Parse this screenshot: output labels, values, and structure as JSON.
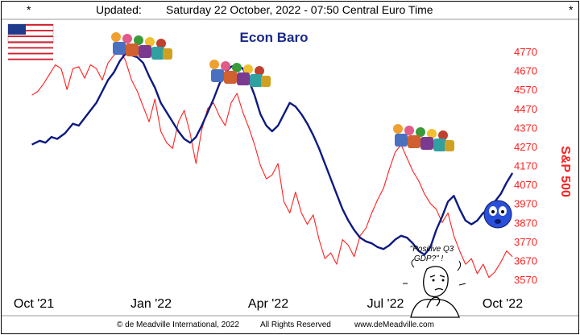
{
  "header": {
    "star_left": "*",
    "updated_label": "Updated:",
    "updated_value": "Saturday 22 October, 2022 - 07:50 Central Euro Time",
    "star_right": "*"
  },
  "footer": {
    "copyright": "© de Meadville International, 2022",
    "rights": "All Rights Reserved",
    "url": "www.deMeadville.com"
  },
  "colors": {
    "baro": "#0d1a80",
    "spx": "#ff2020",
    "frame": "#000000"
  },
  "icons": [
    "us-flag-icon",
    "celebrating-crowd-icon",
    "worried-face-icon",
    "thinking-man-icon"
  ],
  "chart_data": {
    "type": "line",
    "title": "Econ Baro",
    "ylabel_right": "S&P 500",
    "x_ticks": [
      "Oct '21",
      "Jan '22",
      "Apr '22",
      "Jul '22",
      "Oct '22"
    ],
    "y_ticks_right": [
      4770,
      4670,
      4570,
      4470,
      4370,
      4270,
      4170,
      4070,
      3970,
      3870,
      3770,
      3670,
      3570
    ],
    "ylim_right": [
      3520,
      4820
    ],
    "grid": false,
    "annotation": "\"Positive Q3 GDP?\" !",
    "series": [
      {
        "name": "Econ Baro",
        "axis": "none",
        "x": [
          -0.05,
          0.15,
          0.3,
          0.45,
          0.6,
          0.8,
          1.0,
          1.15,
          1.3,
          1.45,
          1.6,
          1.75,
          1.9,
          2.05,
          2.2,
          2.35,
          2.5,
          2.65,
          2.8,
          2.95,
          3.1,
          3.25,
          3.4,
          3.55,
          3.7,
          3.85,
          4.0,
          4.15,
          4.3,
          4.45,
          4.6,
          4.75,
          4.9,
          5.05,
          5.2,
          5.35,
          5.5,
          5.65,
          5.8,
          5.95,
          6.1,
          6.25,
          6.4,
          6.55,
          6.7,
          6.85,
          7.0,
          7.15,
          7.3,
          7.45,
          7.6,
          7.75,
          7.9,
          8.05,
          8.2,
          8.35,
          8.5,
          8.65,
          8.8,
          8.95,
          9.1,
          9.25,
          9.4,
          9.55,
          9.7,
          9.85,
          10.0,
          10.15,
          10.3,
          10.45,
          10.6,
          10.75,
          10.9,
          11.05,
          11.2,
          11.35,
          11.5,
          11.65,
          11.8,
          11.95,
          12.1,
          12.25
        ],
        "values": [
          4280,
          4300,
          4290,
          4320,
          4310,
          4340,
          4390,
          4380,
          4420,
          4460,
          4500,
          4560,
          4620,
          4660,
          4720,
          4760,
          4750,
          4740,
          4710,
          4640,
          4580,
          4500,
          4450,
          4400,
          4350,
          4310,
          4290,
          4320,
          4380,
          4450,
          4520,
          4600,
          4660,
          4690,
          4700,
          4680,
          4620,
          4540,
          4440,
          4380,
          4350,
          4380,
          4440,
          4500,
          4480,
          4440,
          4390,
          4330,
          4260,
          4180,
          4100,
          4020,
          3940,
          3880,
          3830,
          3790,
          3770,
          3760,
          3740,
          3730,
          3750,
          3780,
          3800,
          3790,
          3760,
          3720,
          3700,
          3740,
          3830,
          3900,
          3980,
          4010,
          3940,
          3880,
          3860,
          3880,
          3920,
          3940,
          3980,
          4020,
          4080,
          4130
        ]
      },
      {
        "name": "S&P 500",
        "axis": "right",
        "x": [
          -0.05,
          0.1,
          0.25,
          0.4,
          0.55,
          0.7,
          0.85,
          1.0,
          1.15,
          1.3,
          1.45,
          1.6,
          1.75,
          1.9,
          2.05,
          2.2,
          2.35,
          2.5,
          2.65,
          2.8,
          2.95,
          3.1,
          3.25,
          3.4,
          3.55,
          3.7,
          3.85,
          4.0,
          4.15,
          4.3,
          4.45,
          4.6,
          4.75,
          4.9,
          5.05,
          5.2,
          5.35,
          5.5,
          5.65,
          5.8,
          5.95,
          6.1,
          6.25,
          6.4,
          6.55,
          6.7,
          6.85,
          7.0,
          7.15,
          7.3,
          7.45,
          7.6,
          7.75,
          7.9,
          8.05,
          8.2,
          8.35,
          8.5,
          8.65,
          8.8,
          8.95,
          9.1,
          9.25,
          9.4,
          9.55,
          9.7,
          9.85,
          10.0,
          10.15,
          10.3,
          10.45,
          10.6,
          10.75,
          10.9,
          11.05,
          11.2,
          11.35,
          11.5,
          11.65,
          11.8,
          11.95,
          12.1,
          12.25
        ],
        "values": [
          4540,
          4560,
          4600,
          4650,
          4700,
          4680,
          4570,
          4680,
          4690,
          4630,
          4700,
          4680,
          4620,
          4710,
          4750,
          4780,
          4720,
          4620,
          4560,
          4480,
          4400,
          4520,
          4350,
          4290,
          4260,
          4400,
          4460,
          4340,
          4180,
          4360,
          4470,
          4500,
          4430,
          4380,
          4500,
          4550,
          4450,
          4370,
          4280,
          4170,
          4100,
          4120,
          4180,
          3980,
          3920,
          4030,
          3920,
          3860,
          3910,
          3780,
          3680,
          3710,
          3650,
          3780,
          3750,
          3690,
          3800,
          3840,
          3920,
          3990,
          4050,
          4150,
          4240,
          4280,
          4210,
          4140,
          4090,
          4020,
          3970,
          3940,
          3870,
          3920,
          3800,
          3720,
          3650,
          3680,
          3600,
          3650,
          3580,
          3610,
          3660,
          3720,
          3690
        ]
      }
    ]
  }
}
